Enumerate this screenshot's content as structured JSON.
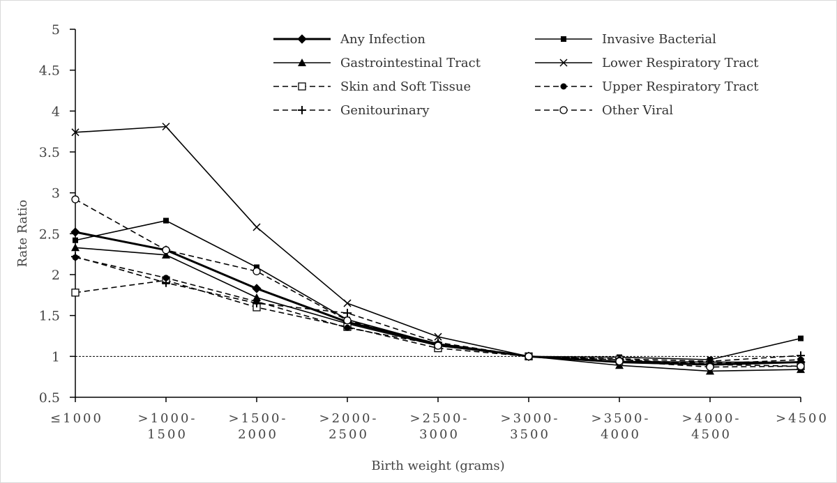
{
  "chart_data": {
    "type": "line",
    "xlabel": "Birth weight (grams)",
    "ylabel": "Rate Ratio",
    "ylim": [
      0.5,
      5
    ],
    "yticks": [
      "0.5",
      "1",
      "1.5",
      "2",
      "2.5",
      "3",
      "3.5",
      "4",
      "4.5",
      "5"
    ],
    "categories": [
      [
        "≤1000"
      ],
      [
        ">1000-",
        "1500"
      ],
      [
        ">1500-",
        "2000"
      ],
      [
        ">2000-",
        "2500"
      ],
      [
        ">2500-",
        "3000"
      ],
      [
        ">3000-",
        "3500"
      ],
      [
        ">3500-",
        "4000"
      ],
      [
        ">4000-",
        "4500"
      ],
      [
        ">4500"
      ]
    ],
    "reference_line": 1,
    "grid": false,
    "legend_position": "top-right",
    "series": [
      {
        "name": "Any Infection",
        "marker": "diamond-filled",
        "dash": "solid",
        "width": "thick",
        "values": [
          2.52,
          2.3,
          1.83,
          1.42,
          1.15,
          1.0,
          0.93,
          0.9,
          0.93
        ]
      },
      {
        "name": "Invasive Bacterial",
        "marker": "square-filled",
        "dash": "solid",
        "width": "normal",
        "values": [
          2.42,
          2.66,
          2.09,
          1.45,
          1.15,
          1.0,
          0.99,
          0.96,
          1.22
        ]
      },
      {
        "name": "Gastrointestinal Tract",
        "marker": "triangle-filled",
        "dash": "solid",
        "width": "normal",
        "values": [
          2.33,
          2.24,
          1.72,
          1.4,
          1.13,
          1.0,
          0.89,
          0.82,
          0.84
        ]
      },
      {
        "name": "Lower Respiratory Tract",
        "marker": "x",
        "dash": "solid",
        "width": "normal",
        "values": [
          3.74,
          3.81,
          2.58,
          1.65,
          1.24,
          1.0,
          0.94,
          0.93,
          0.93
        ]
      },
      {
        "name": "Skin and Soft Tissue",
        "marker": "square-open",
        "dash": "dashed",
        "width": "normal",
        "values": [
          1.78,
          1.93,
          1.6,
          1.36,
          1.1,
          1.0,
          0.96,
          0.9,
          0.88
        ]
      },
      {
        "name": "Upper Respiratory Tract",
        "marker": "circle-filled",
        "dash": "dashed",
        "width": "normal",
        "values": [
          2.21,
          1.96,
          1.67,
          1.35,
          1.14,
          1.0,
          0.96,
          0.91,
          0.96
        ]
      },
      {
        "name": "Genitourinary",
        "marker": "plus",
        "dash": "dashed",
        "width": "normal",
        "values": [
          2.22,
          1.9,
          1.65,
          1.53,
          1.17,
          1.0,
          0.97,
          0.94,
          1.01
        ]
      },
      {
        "name": "Other Viral",
        "marker": "circle-open",
        "dash": "dashed",
        "width": "normal",
        "values": [
          2.92,
          2.3,
          2.04,
          1.44,
          1.13,
          1.0,
          0.94,
          0.87,
          0.88
        ]
      }
    ]
  }
}
